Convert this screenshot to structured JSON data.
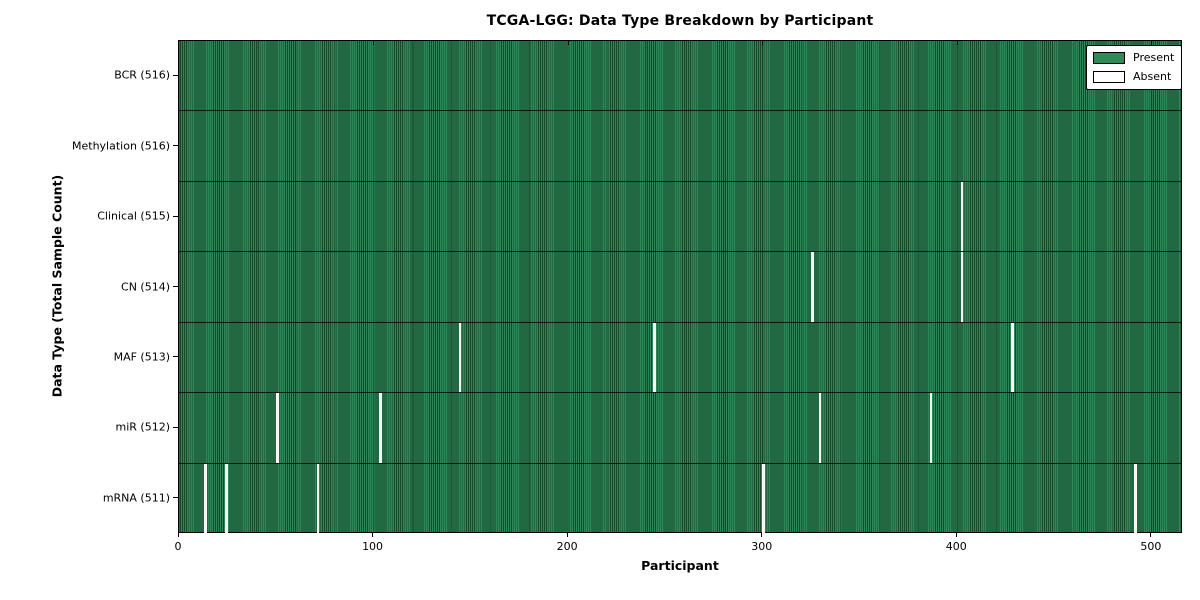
{
  "chart_data": {
    "type": "heatmap",
    "title": "TCGA-LGG: Data Type Breakdown by Participant",
    "xlabel": "Participant",
    "ylabel": "Data Type (Total Sample Count)",
    "x_range": [
      0,
      516
    ],
    "x_ticks": [
      "0",
      "100",
      "200",
      "300",
      "400",
      "500"
    ],
    "x_tick_values": [
      0,
      100,
      200,
      300,
      400,
      500
    ],
    "n_participants": 516,
    "grid": false,
    "legend_position": "upper right",
    "legend": [
      {
        "label": "Present",
        "color": "#2e8b57"
      },
      {
        "label": "Absent",
        "color": "#ffffff"
      }
    ],
    "rows": [
      {
        "label": "BCR (516)",
        "data_type": "BCR",
        "present_count": 516,
        "absent_participants": []
      },
      {
        "label": "Methylation (516)",
        "data_type": "Methylation",
        "present_count": 516,
        "absent_participants": []
      },
      {
        "label": "Clinical (515)",
        "data_type": "Clinical",
        "present_count": 515,
        "absent_participants": [
          402
        ]
      },
      {
        "label": "CN (514)",
        "data_type": "CN",
        "present_count": 514,
        "absent_participants": [
          325,
          402
        ]
      },
      {
        "label": "MAF (513)",
        "data_type": "MAF",
        "present_count": 513,
        "absent_participants": [
          144,
          244,
          428
        ]
      },
      {
        "label": "miR (512)",
        "data_type": "miR",
        "present_count": 512,
        "absent_participants": [
          50,
          103,
          329,
          386
        ]
      },
      {
        "label": "mRNA (511)",
        "data_type": "mRNA",
        "present_count": 511,
        "absent_participants": [
          13,
          24,
          71,
          300,
          491
        ]
      }
    ],
    "colors": {
      "present_fill": "#2f8757",
      "cell_edge": "#16482c",
      "absent_fill": "#f7f7f5",
      "axes_edge": "#000000",
      "background": "#ffffff"
    }
  }
}
